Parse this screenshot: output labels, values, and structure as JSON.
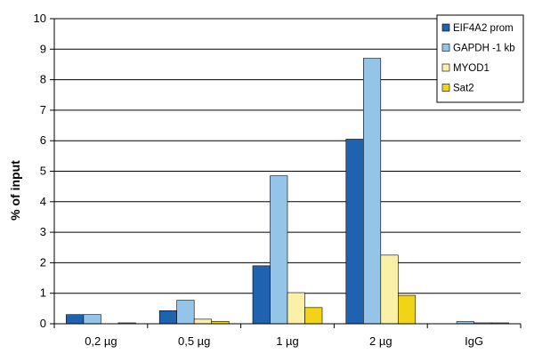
{
  "chart_data": {
    "type": "bar",
    "title": "",
    "xlabel": "",
    "ylabel": "% of input",
    "ylim": [
      0,
      10
    ],
    "yticks": [
      0,
      1,
      2,
      3,
      4,
      5,
      6,
      7,
      8,
      9,
      10
    ],
    "grid": true,
    "legend_position": "top-right",
    "categories": [
      "0,2 µg",
      "0,5 µg",
      "1 µg",
      "2 µg",
      "IgG"
    ],
    "series": [
      {
        "name": "EIF4A2 prom",
        "color": "#1f63b0",
        "values": [
          0.3,
          0.43,
          1.9,
          6.05,
          0.0
        ]
      },
      {
        "name": "GAPDH -1 kb",
        "color": "#94c4e8",
        "values": [
          0.3,
          0.77,
          4.85,
          8.7,
          0.07
        ]
      },
      {
        "name": "MYOD1",
        "color": "#fbf0a8",
        "values": [
          0.0,
          0.15,
          1.02,
          2.25,
          0.03
        ]
      },
      {
        "name": "Sat2",
        "color": "#f2d417",
        "values": [
          0.03,
          0.08,
          0.53,
          0.93,
          0.03
        ]
      }
    ]
  }
}
